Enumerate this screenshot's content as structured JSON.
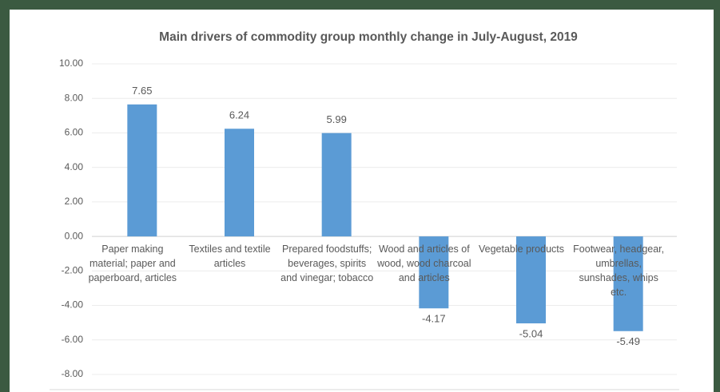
{
  "chart_data": {
    "type": "bar",
    "title": "Main drivers of commodity group monthly change in July-August, 2019",
    "categories": [
      "Paper making material; paper and paperboard, articles",
      "Textiles and textile articles",
      "Prepared foodstuffs; beverages, spirits and vinegar; tobacco",
      "Wood and articles of wood, wood charcoal and articles",
      "Vegetable products",
      "Footwear, headgear, umbrellas, sunshades, whips etc."
    ],
    "values": [
      7.65,
      6.24,
      5.99,
      -4.17,
      -5.04,
      -5.49
    ],
    "color": "#5b9bd5",
    "ylim": [
      -8,
      10
    ],
    "yticks": [
      {
        "value": 10,
        "label": "10.00"
      },
      {
        "value": 8,
        "label": "8.00"
      },
      {
        "value": 6,
        "label": "6.00"
      },
      {
        "value": 4,
        "label": "4.00"
      },
      {
        "value": 2,
        "label": "2.00"
      },
      {
        "value": 0,
        "label": "0.00"
      },
      {
        "value": -2,
        "label": "-2.00"
      },
      {
        "value": -4,
        "label": "-4.00"
      },
      {
        "value": -6,
        "label": "-6.00"
      },
      {
        "value": -8,
        "label": "-8.00"
      }
    ],
    "grid": true
  }
}
